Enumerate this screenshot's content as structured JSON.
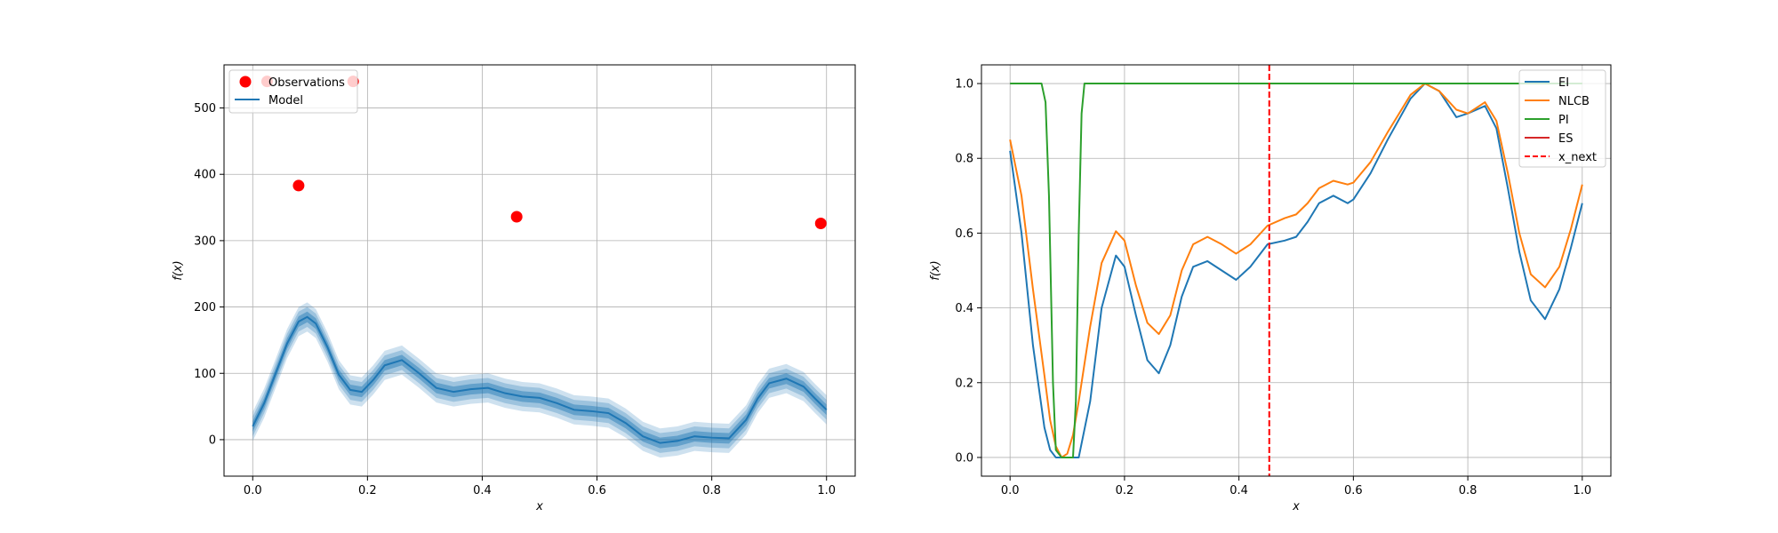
{
  "chart_data": [
    {
      "type": "line",
      "xlabel": "x",
      "ylabel": "f(x)",
      "xlim": [
        -0.05,
        1.05
      ],
      "ylim": [
        -55,
        565
      ],
      "xticks": [
        0.0,
        0.2,
        0.4,
        0.6,
        0.8,
        1.0
      ],
      "xtick_labels": [
        "0.0",
        "0.2",
        "0.4",
        "0.6",
        "0.8",
        "1.0"
      ],
      "yticks": [
        0,
        100,
        200,
        300,
        400,
        500
      ],
      "ytick_labels": [
        "0",
        "100",
        "200",
        "300",
        "400",
        "500"
      ],
      "grid": true,
      "legend_placement": "upper-left",
      "observations": {
        "name": "Observations",
        "color": "#ff0000",
        "x": [
          0.025,
          0.08,
          0.175,
          0.46,
          0.99
        ],
        "y": [
          540,
          383,
          540,
          336,
          326
        ]
      },
      "model": {
        "name": "Model",
        "color": "#1f77b4",
        "x": [
          0.0,
          0.02,
          0.04,
          0.06,
          0.08,
          0.095,
          0.11,
          0.13,
          0.15,
          0.17,
          0.19,
          0.21,
          0.23,
          0.26,
          0.29,
          0.32,
          0.35,
          0.38,
          0.41,
          0.44,
          0.47,
          0.5,
          0.53,
          0.56,
          0.59,
          0.62,
          0.65,
          0.68,
          0.71,
          0.74,
          0.77,
          0.8,
          0.83,
          0.86,
          0.88,
          0.9,
          0.93,
          0.96,
          0.98,
          1.0
        ],
        "y": [
          20,
          55,
          100,
          145,
          178,
          185,
          175,
          140,
          98,
          75,
          72,
          90,
          112,
          120,
          100,
          78,
          72,
          76,
          78,
          70,
          65,
          63,
          55,
          45,
          43,
          40,
          25,
          5,
          -5,
          -2,
          5,
          3,
          2,
          30,
          62,
          85,
          92,
          80,
          62,
          45
        ]
      }
    },
    {
      "type": "line",
      "xlabel": "x",
      "ylabel": "f(x)",
      "xlim": [
        -0.05,
        1.05
      ],
      "ylim": [
        -0.05,
        1.05
      ],
      "xticks": [
        0.0,
        0.2,
        0.4,
        0.6,
        0.8,
        1.0
      ],
      "xtick_labels": [
        "0.0",
        "0.2",
        "0.4",
        "0.6",
        "0.8",
        "1.0"
      ],
      "yticks": [
        0.0,
        0.2,
        0.4,
        0.6,
        0.8,
        1.0
      ],
      "ytick_labels": [
        "0.0",
        "0.2",
        "0.4",
        "0.6",
        "0.8",
        "1.0"
      ],
      "grid": true,
      "legend_placement": "upper-right",
      "series": [
        {
          "name": "EI",
          "color": "#1f77b4",
          "x": [
            0.0,
            0.02,
            0.04,
            0.06,
            0.07,
            0.08,
            0.09,
            0.1,
            0.11,
            0.12,
            0.14,
            0.16,
            0.185,
            0.2,
            0.22,
            0.24,
            0.26,
            0.28,
            0.3,
            0.32,
            0.345,
            0.37,
            0.395,
            0.42,
            0.45,
            0.48,
            0.5,
            0.52,
            0.54,
            0.565,
            0.59,
            0.6,
            0.63,
            0.66,
            0.7,
            0.725,
            0.75,
            0.78,
            0.8,
            0.83,
            0.85,
            0.87,
            0.89,
            0.91,
            0.935,
            0.96,
            0.98,
            1.0
          ],
          "y": [
            0.82,
            0.6,
            0.3,
            0.08,
            0.02,
            0.0,
            0.0,
            0.0,
            0.0,
            0.0,
            0.15,
            0.4,
            0.54,
            0.51,
            0.38,
            0.26,
            0.225,
            0.3,
            0.43,
            0.51,
            0.525,
            0.5,
            0.475,
            0.51,
            0.57,
            0.58,
            0.59,
            0.63,
            0.68,
            0.7,
            0.68,
            0.69,
            0.76,
            0.85,
            0.96,
            1.0,
            0.98,
            0.91,
            0.92,
            0.94,
            0.88,
            0.72,
            0.55,
            0.42,
            0.37,
            0.45,
            0.56,
            0.68
          ]
        },
        {
          "name": "NLCB",
          "color": "#ff7f0e",
          "x": [
            0.0,
            0.02,
            0.04,
            0.06,
            0.07,
            0.08,
            0.09,
            0.1,
            0.11,
            0.12,
            0.14,
            0.16,
            0.185,
            0.2,
            0.22,
            0.24,
            0.26,
            0.28,
            0.3,
            0.32,
            0.345,
            0.37,
            0.395,
            0.42,
            0.45,
            0.48,
            0.5,
            0.52,
            0.54,
            0.565,
            0.59,
            0.6,
            0.63,
            0.66,
            0.7,
            0.725,
            0.75,
            0.78,
            0.8,
            0.83,
            0.85,
            0.87,
            0.89,
            0.91,
            0.935,
            0.96,
            0.98,
            1.0
          ],
          "y": [
            0.85,
            0.7,
            0.45,
            0.22,
            0.1,
            0.03,
            0.0,
            0.01,
            0.06,
            0.15,
            0.35,
            0.52,
            0.605,
            0.58,
            0.46,
            0.36,
            0.33,
            0.38,
            0.5,
            0.57,
            0.59,
            0.57,
            0.545,
            0.57,
            0.62,
            0.64,
            0.65,
            0.68,
            0.72,
            0.74,
            0.73,
            0.735,
            0.79,
            0.87,
            0.97,
            1.0,
            0.98,
            0.93,
            0.92,
            0.95,
            0.9,
            0.76,
            0.6,
            0.49,
            0.455,
            0.51,
            0.61,
            0.73
          ]
        },
        {
          "name": "PI",
          "color": "#2ca02c",
          "x": [
            0.0,
            0.055,
            0.062,
            0.068,
            0.075,
            0.08,
            0.09,
            0.1,
            0.11,
            0.115,
            0.12,
            0.125,
            0.13,
            0.14,
            1.0
          ],
          "y": [
            1.0,
            1.0,
            0.95,
            0.7,
            0.2,
            0.02,
            0.0,
            0.0,
            0.0,
            0.15,
            0.6,
            0.92,
            1.0,
            1.0,
            1.0
          ]
        },
        {
          "name": "ES",
          "color": "#d62728",
          "x": [],
          "y": []
        }
      ],
      "x_next": {
        "name": "x_next",
        "color": "#ff0000",
        "x": 0.453
      }
    }
  ]
}
